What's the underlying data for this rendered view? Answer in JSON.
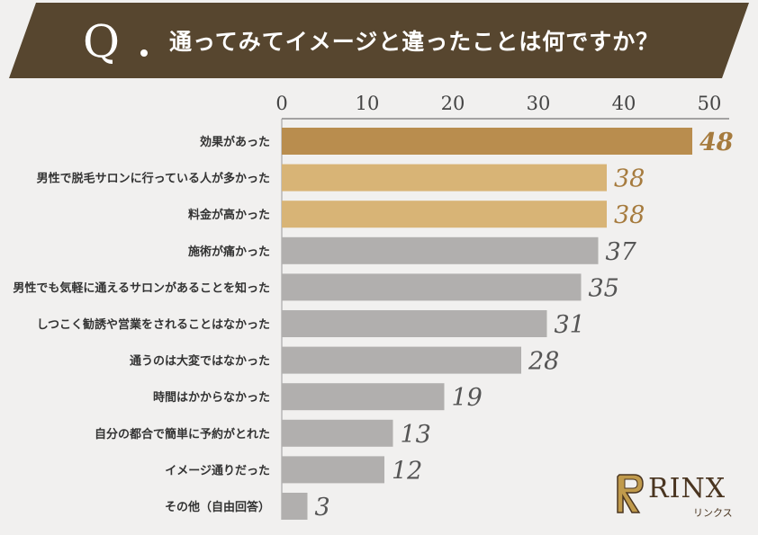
{
  "header": {
    "q_mark": "Q",
    "question": "通ってみてイメージと違ったことは何ですか？"
  },
  "colors": {
    "banner": "#57462f",
    "top1": "#b98d4e",
    "top2": "#d8b476",
    "other": "#b1afae",
    "value_top": "#a67b3e",
    "value_other": "#555555",
    "axis": "#555555"
  },
  "logo": {
    "text": "RINX",
    "kana": "リンクス",
    "icon": "rinx-r-emblem-icon"
  },
  "chart_data": {
    "type": "bar",
    "orientation": "horizontal",
    "title": "",
    "xlabel": "",
    "ylabel": "",
    "xlim": [
      0,
      50
    ],
    "x_ticks": [
      0,
      10,
      20,
      30,
      40,
      50
    ],
    "x_tick_labels": [
      "0",
      "10",
      "20",
      "30",
      "40",
      "50"
    ],
    "grid": false,
    "categories": [
      "効果があった",
      "男性で脱毛サロンに行っている人が多かった",
      "料金が高かった",
      "施術が痛かった",
      "男性でも気軽に通えるサロンがあることを知った",
      "しつこく勧誘や営業をされることはなかった",
      "通うのは大変ではなかった",
      "時間はかからなかった",
      "自分の都合で簡単に予約がとれた",
      "イメージ通りだった",
      "その他（自由回答）"
    ],
    "values": [
      48,
      38,
      38,
      37,
      35,
      31,
      28,
      19,
      13,
      12,
      3
    ],
    "value_labels": [
      "48",
      "38",
      "38",
      "37",
      "35",
      "31",
      "28",
      "19",
      "13",
      "12",
      "3"
    ]
  }
}
